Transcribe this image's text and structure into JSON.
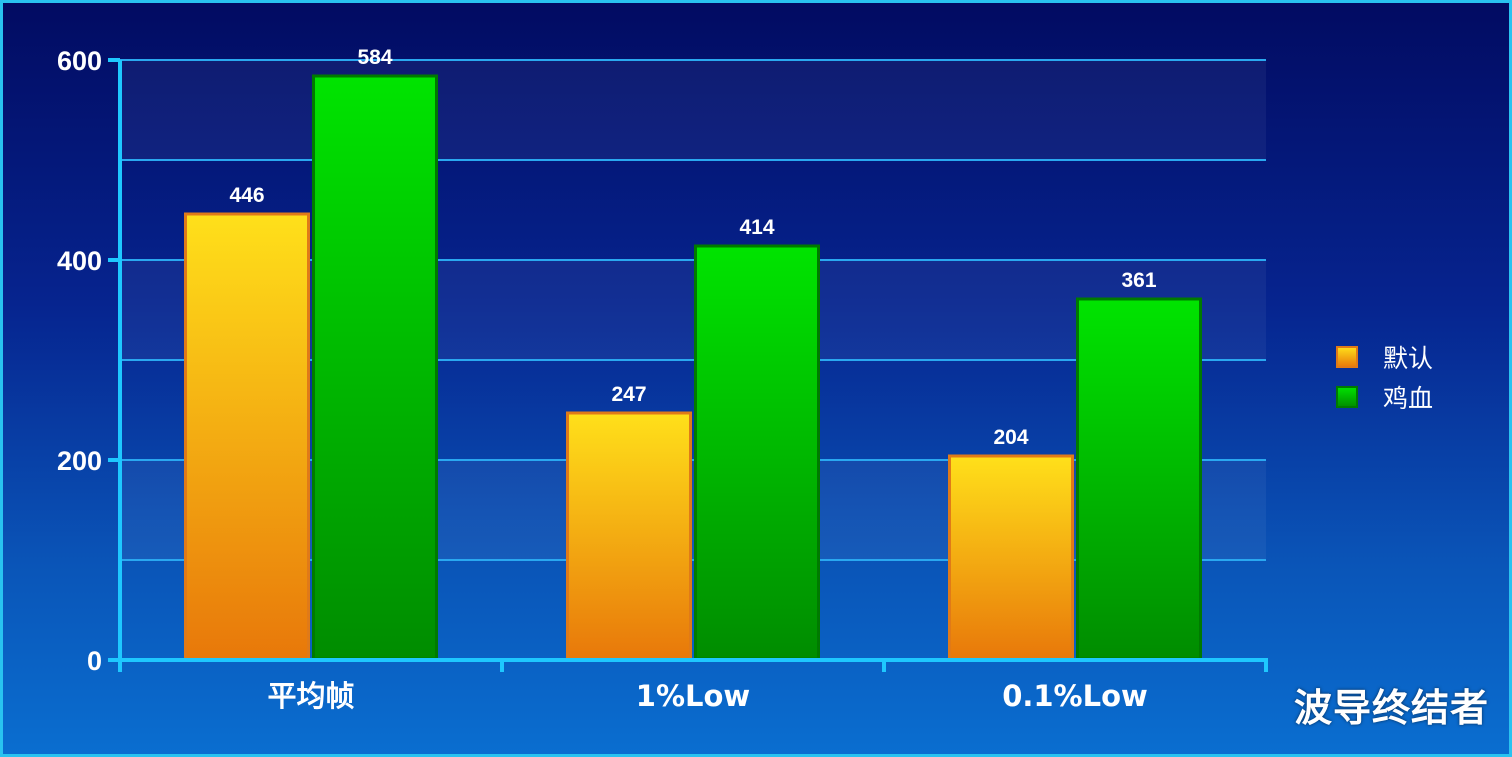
{
  "chart_data": {
    "type": "bar",
    "categories": [
      "平均帧",
      "1%Low",
      "0.1%Low"
    ],
    "series": [
      {
        "name": "默认",
        "values": [
          446,
          247,
          204
        ]
      },
      {
        "name": "鸡血",
        "values": [
          584,
          414,
          361
        ]
      }
    ],
    "ylim": [
      0,
      600
    ],
    "yticks": [
      0,
      200,
      400,
      600
    ],
    "grid": true,
    "legend_position": "right"
  },
  "colors": {
    "series_0_top": "#ffe01a",
    "series_0_bottom": "#e8780a",
    "series_0_border": "#e07a18",
    "series_1_top": "#00e400",
    "series_1_bottom": "#008c00",
    "series_1_border": "#007a00",
    "axis": "#1ec8ff",
    "grid": "#2aa8f0"
  },
  "watermark": "波导终结者"
}
